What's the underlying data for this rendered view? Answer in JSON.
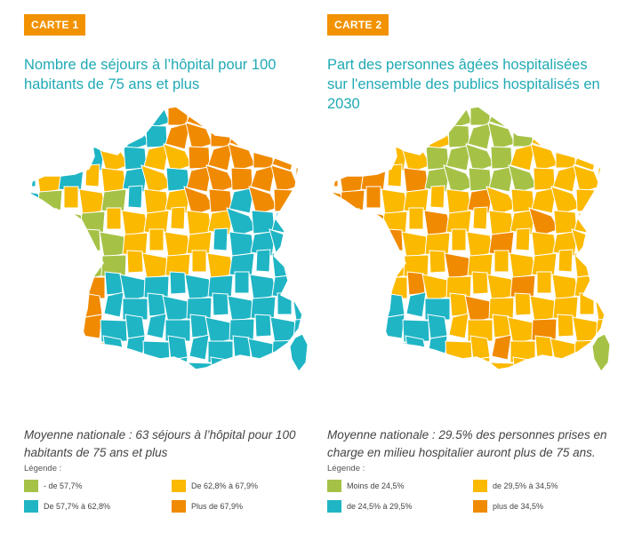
{
  "colors": {
    "accent": "#f29200",
    "title": "#1fa9b4",
    "green": "#a5c247",
    "teal": "#1fb5c5",
    "yellow": "#fbb900",
    "orange": "#f08a00"
  },
  "maps": [
    {
      "badge": "CARTE 1",
      "title": "Nombre de séjours à l’hôpital pour 100 habitants de 75 ans et plus",
      "average": "Moyenne nationale : 63 séjours à l’hôpital pour 100 habitants de 75 ans et plus",
      "legend_title": "Légende :",
      "legend": [
        {
          "label": "- de 57,7%",
          "color": "#a5c247"
        },
        {
          "label": "De 62,8% à 67,9%",
          "color": "#fbb900"
        },
        {
          "label": "De 57,7% à 62,8%",
          "color": "#1fb5c5"
        },
        {
          "label": "Plus de 67,9%",
          "color": "#f08a00"
        }
      ]
    },
    {
      "badge": "CARTE 2",
      "title": "Part des personnes âgées hospitalisées sur l'ensemble des publics hospitalisés en 2030",
      "average": "Moyenne nationale : 29.5% des personnes prises en charge en milieu hospitalier auront plus de 75 ans.",
      "legend_title": "Légende :",
      "legend": [
        {
          "label": "Moins de 24,5%",
          "color": "#a5c247"
        },
        {
          "label": "de 29,5% à 34,5%",
          "color": "#fbb900"
        },
        {
          "label": "de 24,5% à 29,5%",
          "color": "#1fb5c5"
        },
        {
          "label": "plus de 34,5%",
          "color": "#f08a00"
        }
      ]
    }
  ]
}
